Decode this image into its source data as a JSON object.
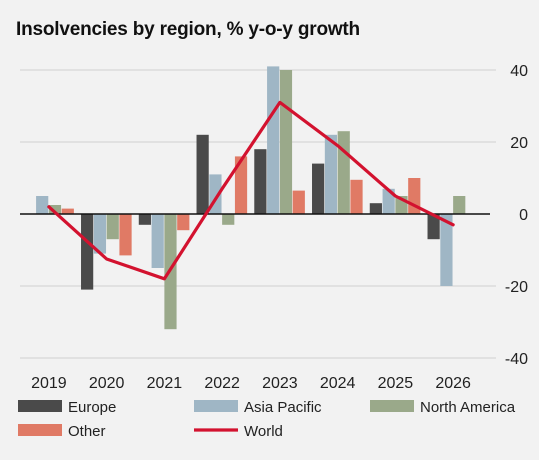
{
  "chart_data": {
    "type": "bar",
    "title": "Insolvencies by region, % y-o-y growth",
    "xlabel": "",
    "ylabel": "",
    "categories": [
      "2019",
      "2020",
      "2021",
      "2022",
      "2023",
      "2024",
      "2025",
      "2026"
    ],
    "ylim": [
      -40,
      40
    ],
    "yticks": [
      40,
      20,
      0,
      -20,
      -40
    ],
    "grid": true,
    "legend": "bottom",
    "series": [
      {
        "name": "Europe",
        "type": "bar",
        "color": "#4a4a4a",
        "values": [
          0,
          -21,
          -3,
          22,
          18,
          14,
          3,
          -7
        ]
      },
      {
        "name": "Asia Pacific",
        "type": "bar",
        "color": "#9fb6c5",
        "values": [
          5,
          -11,
          -15,
          11,
          41,
          22,
          7,
          -20
        ]
      },
      {
        "name": "North America",
        "type": "bar",
        "color": "#9aa98a",
        "values": [
          2.5,
          -7,
          -32,
          -3,
          40,
          23,
          5,
          5
        ]
      },
      {
        "name": "Other",
        "type": "bar",
        "color": "#e07a65",
        "values": [
          1.5,
          -11.5,
          -4.5,
          16,
          6.5,
          9.5,
          10,
          0
        ]
      },
      {
        "name": "World",
        "type": "line",
        "color": "#d3122f",
        "values": [
          2,
          -12.5,
          -18,
          7,
          31,
          19,
          5,
          -3
        ]
      }
    ]
  }
}
